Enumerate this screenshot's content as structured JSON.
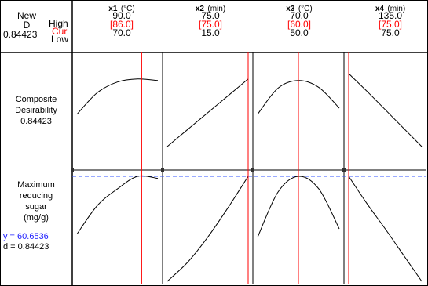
{
  "header": {
    "new_label": "New",
    "d_label": "D",
    "d_value": "0.84423",
    "high_label": "High",
    "cur_label": "Cur",
    "low_label": "Low"
  },
  "factors": [
    {
      "name": "x1",
      "unit": "(°C)",
      "high": "90.0",
      "cur": "[86.0]",
      "low": "70.0",
      "cur_value": 86.0,
      "high_value": 90.0,
      "low_value": 70.0
    },
    {
      "name": "x2",
      "unit": "(min)",
      "high": "75.0",
      "cur": "[75.0]",
      "low": "15.0",
      "cur_value": 75.0,
      "high_value": 75.0,
      "low_value": 15.0
    },
    {
      "name": "x3",
      "unit": "(°C)",
      "high": "70.0",
      "cur": "[60.0]",
      "low": "50.0",
      "cur_value": 60.0,
      "high_value": 70.0,
      "low_value": 50.0
    },
    {
      "name": "x4",
      "unit": "(min)",
      "high": "135.0",
      "cur": "[75.0]",
      "low": "75.0",
      "cur_value": 75.0,
      "high_value": 135.0,
      "low_value": 75.0
    }
  ],
  "rows": {
    "composite": {
      "line1": "Composite",
      "line2": "Desirability",
      "value": "0.84423"
    },
    "response": {
      "line1": "Maximum",
      "line2": "reducing",
      "line3": "sugar",
      "line4": "(mg/g)",
      "y_text": "y = 60.6536",
      "d_text": "d = 0.84423"
    }
  },
  "colors": {
    "current_line": "#ff0000",
    "target_line": "#3355ff",
    "curve": "#000000",
    "frame": "#000000"
  },
  "chart_data": {
    "type": "line",
    "panels_x": [
      "x1",
      "x2",
      "x3",
      "x4"
    ],
    "composite_desirability": [
      {
        "factor": "x1",
        "x": [
          70,
          75,
          80,
          85,
          90
        ],
        "y": [
          0.42,
          0.7,
          0.84,
          0.88,
          0.86
        ]
      },
      {
        "factor": "x2",
        "x": [
          15,
          30,
          45,
          60,
          75
        ],
        "y": [
          0.0,
          0.22,
          0.44,
          0.66,
          0.88
        ]
      },
      {
        "factor": "x3",
        "x": [
          50,
          55,
          60,
          65,
          70
        ],
        "y": [
          0.42,
          0.76,
          0.86,
          0.77,
          0.5
        ]
      },
      {
        "factor": "x4",
        "x": [
          75,
          90,
          105,
          120,
          135
        ],
        "y": [
          0.95,
          0.72,
          0.48,
          0.24,
          0.0
        ]
      }
    ],
    "response_curves": [
      {
        "factor": "x1",
        "x": [
          70,
          75,
          80,
          85,
          90
        ],
        "y": [
          0.45,
          0.72,
          0.88,
          1.0,
          0.98
        ]
      },
      {
        "factor": "x2",
        "x": [
          15,
          30,
          45,
          60,
          75
        ],
        "y": [
          0.0,
          0.18,
          0.42,
          0.7,
          1.0
        ]
      },
      {
        "factor": "x3",
        "x": [
          50,
          55,
          60,
          65,
          70
        ],
        "y": [
          0.42,
          0.85,
          1.0,
          0.88,
          0.5
        ]
      },
      {
        "factor": "x4",
        "x": [
          75,
          90,
          105,
          120,
          135
        ],
        "y": [
          1.0,
          0.74,
          0.5,
          0.25,
          0.0
        ]
      }
    ],
    "current": {
      "x1": 86.0,
      "x2": 75.0,
      "x3": 60.0,
      "x4": 75.0
    }
  }
}
